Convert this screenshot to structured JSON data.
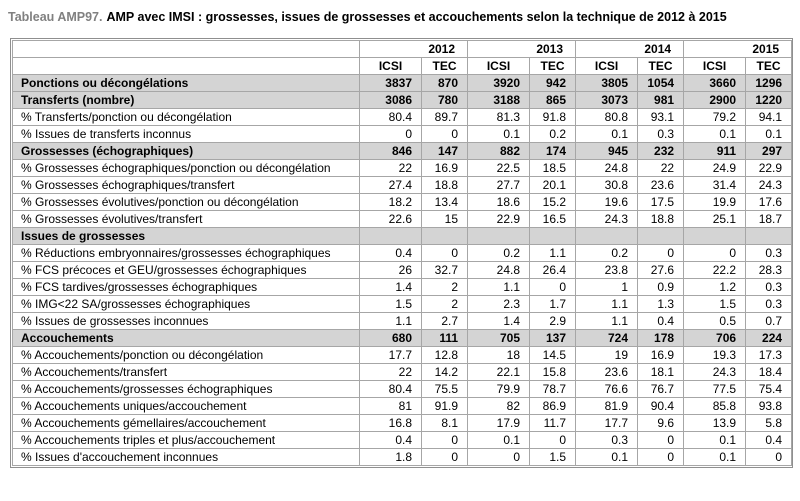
{
  "title": {
    "prefix": "Tableau AMP97.",
    "text": "AMP avec IMSI : grossesses, issues de grossesses et accouchements selon la technique de 2012 à 2015"
  },
  "table": {
    "years": [
      "2012",
      "2013",
      "2014",
      "2015"
    ],
    "technique_headers": [
      "ICSI",
      "TEC"
    ],
    "rows": [
      {
        "label": "Ponctions ou décongélations",
        "type": "section",
        "values": [
          "3837",
          "870",
          "3920",
          "942",
          "3805",
          "1054",
          "3660",
          "1296"
        ]
      },
      {
        "label": "Transferts (nombre)",
        "type": "section",
        "values": [
          "3086",
          "780",
          "3188",
          "865",
          "3073",
          "981",
          "2900",
          "1220"
        ]
      },
      {
        "label": "% Transferts/ponction ou décongélation",
        "type": "data",
        "values": [
          "80.4",
          "89.7",
          "81.3",
          "91.8",
          "80.8",
          "93.1",
          "79.2",
          "94.1"
        ]
      },
      {
        "label": "% Issues de transferts inconnus",
        "type": "data",
        "values": [
          "0",
          "0",
          "0.1",
          "0.2",
          "0.1",
          "0.3",
          "0.1",
          "0.1"
        ]
      },
      {
        "label": "Grossesses (échographiques)",
        "type": "section",
        "values": [
          "846",
          "147",
          "882",
          "174",
          "945",
          "232",
          "911",
          "297"
        ]
      },
      {
        "label": "% Grossesses échographiques/ponction ou décongélation",
        "type": "data",
        "values": [
          "22",
          "16.9",
          "22.5",
          "18.5",
          "24.8",
          "22",
          "24.9",
          "22.9"
        ]
      },
      {
        "label": "% Grossesses échographiques/transfert",
        "type": "data",
        "values": [
          "27.4",
          "18.8",
          "27.7",
          "20.1",
          "30.8",
          "23.6",
          "31.4",
          "24.3"
        ]
      },
      {
        "label": "% Grossesses évolutives/ponction ou décongélation",
        "type": "data",
        "values": [
          "18.2",
          "13.4",
          "18.6",
          "15.2",
          "19.6",
          "17.5",
          "19.9",
          "17.6"
        ]
      },
      {
        "label": "% Grossesses évolutives/transfert",
        "type": "data",
        "values": [
          "22.6",
          "15",
          "22.9",
          "16.5",
          "24.3",
          "18.8",
          "25.1",
          "18.7"
        ]
      },
      {
        "label": "Issues de grossesses",
        "type": "section",
        "values": [
          "",
          "",
          "",
          "",
          "",
          "",
          "",
          ""
        ]
      },
      {
        "label": "% Réductions embryonnaires/grossesses échographiques",
        "type": "data",
        "values": [
          "0.4",
          "0",
          "0.2",
          "1.1",
          "0.2",
          "0",
          "0",
          "0.3"
        ]
      },
      {
        "label": "% FCS précoces et GEU/grossesses échographiques",
        "type": "data",
        "values": [
          "26",
          "32.7",
          "24.8",
          "26.4",
          "23.8",
          "27.6",
          "22.2",
          "28.3"
        ]
      },
      {
        "label": "% FCS tardives/grossesses échographiques",
        "type": "data",
        "values": [
          "1.4",
          "2",
          "1.1",
          "0",
          "1",
          "0.9",
          "1.2",
          "0.3"
        ]
      },
      {
        "label": "% IMG<22 SA/grossesses échographiques",
        "type": "data",
        "values": [
          "1.5",
          "2",
          "2.3",
          "1.7",
          "1.1",
          "1.3",
          "1.5",
          "0.3"
        ]
      },
      {
        "label": "% Issues de grossesses inconnues",
        "type": "data",
        "values": [
          "1.1",
          "2.7",
          "1.4",
          "2.9",
          "1.1",
          "0.4",
          "0.5",
          "0.7"
        ]
      },
      {
        "label": "Accouchements",
        "type": "section",
        "values": [
          "680",
          "111",
          "705",
          "137",
          "724",
          "178",
          "706",
          "224"
        ]
      },
      {
        "label": "% Accouchements/ponction ou décongélation",
        "type": "data",
        "values": [
          "17.7",
          "12.8",
          "18",
          "14.5",
          "19",
          "16.9",
          "19.3",
          "17.3"
        ]
      },
      {
        "label": "% Accouchements/transfert",
        "type": "data",
        "values": [
          "22",
          "14.2",
          "22.1",
          "15.8",
          "23.6",
          "18.1",
          "24.3",
          "18.4"
        ]
      },
      {
        "label": "% Accouchements/grossesses échographiques",
        "type": "data",
        "values": [
          "80.4",
          "75.5",
          "79.9",
          "78.7",
          "76.6",
          "76.7",
          "77.5",
          "75.4"
        ]
      },
      {
        "label": "% Accouchements uniques/accouchement",
        "type": "data",
        "values": [
          "81",
          "91.9",
          "82",
          "86.9",
          "81.9",
          "90.4",
          "85.8",
          "93.8"
        ]
      },
      {
        "label": "% Accouchements gémellaires/accouchement",
        "type": "data",
        "values": [
          "16.8",
          "8.1",
          "17.9",
          "11.7",
          "17.7",
          "9.6",
          "13.9",
          "5.8"
        ]
      },
      {
        "label": "% Accouchements triples et plus/accouchement",
        "type": "data",
        "values": [
          "0.4",
          "0",
          "0.1",
          "0",
          "0.3",
          "0",
          "0.1",
          "0.4"
        ]
      },
      {
        "label": "% Issues d'accouchement inconnues",
        "type": "data",
        "values": [
          "1.8",
          "0",
          "0",
          "1.5",
          "0.1",
          "0",
          "0.1",
          "0"
        ]
      }
    ]
  },
  "colors": {
    "section_row_bg": "#d4d4d4",
    "grid_border": "#a6a6a6",
    "outer_border": "#8f8f8f",
    "title_prefix": "#808080",
    "text": "#000000"
  }
}
